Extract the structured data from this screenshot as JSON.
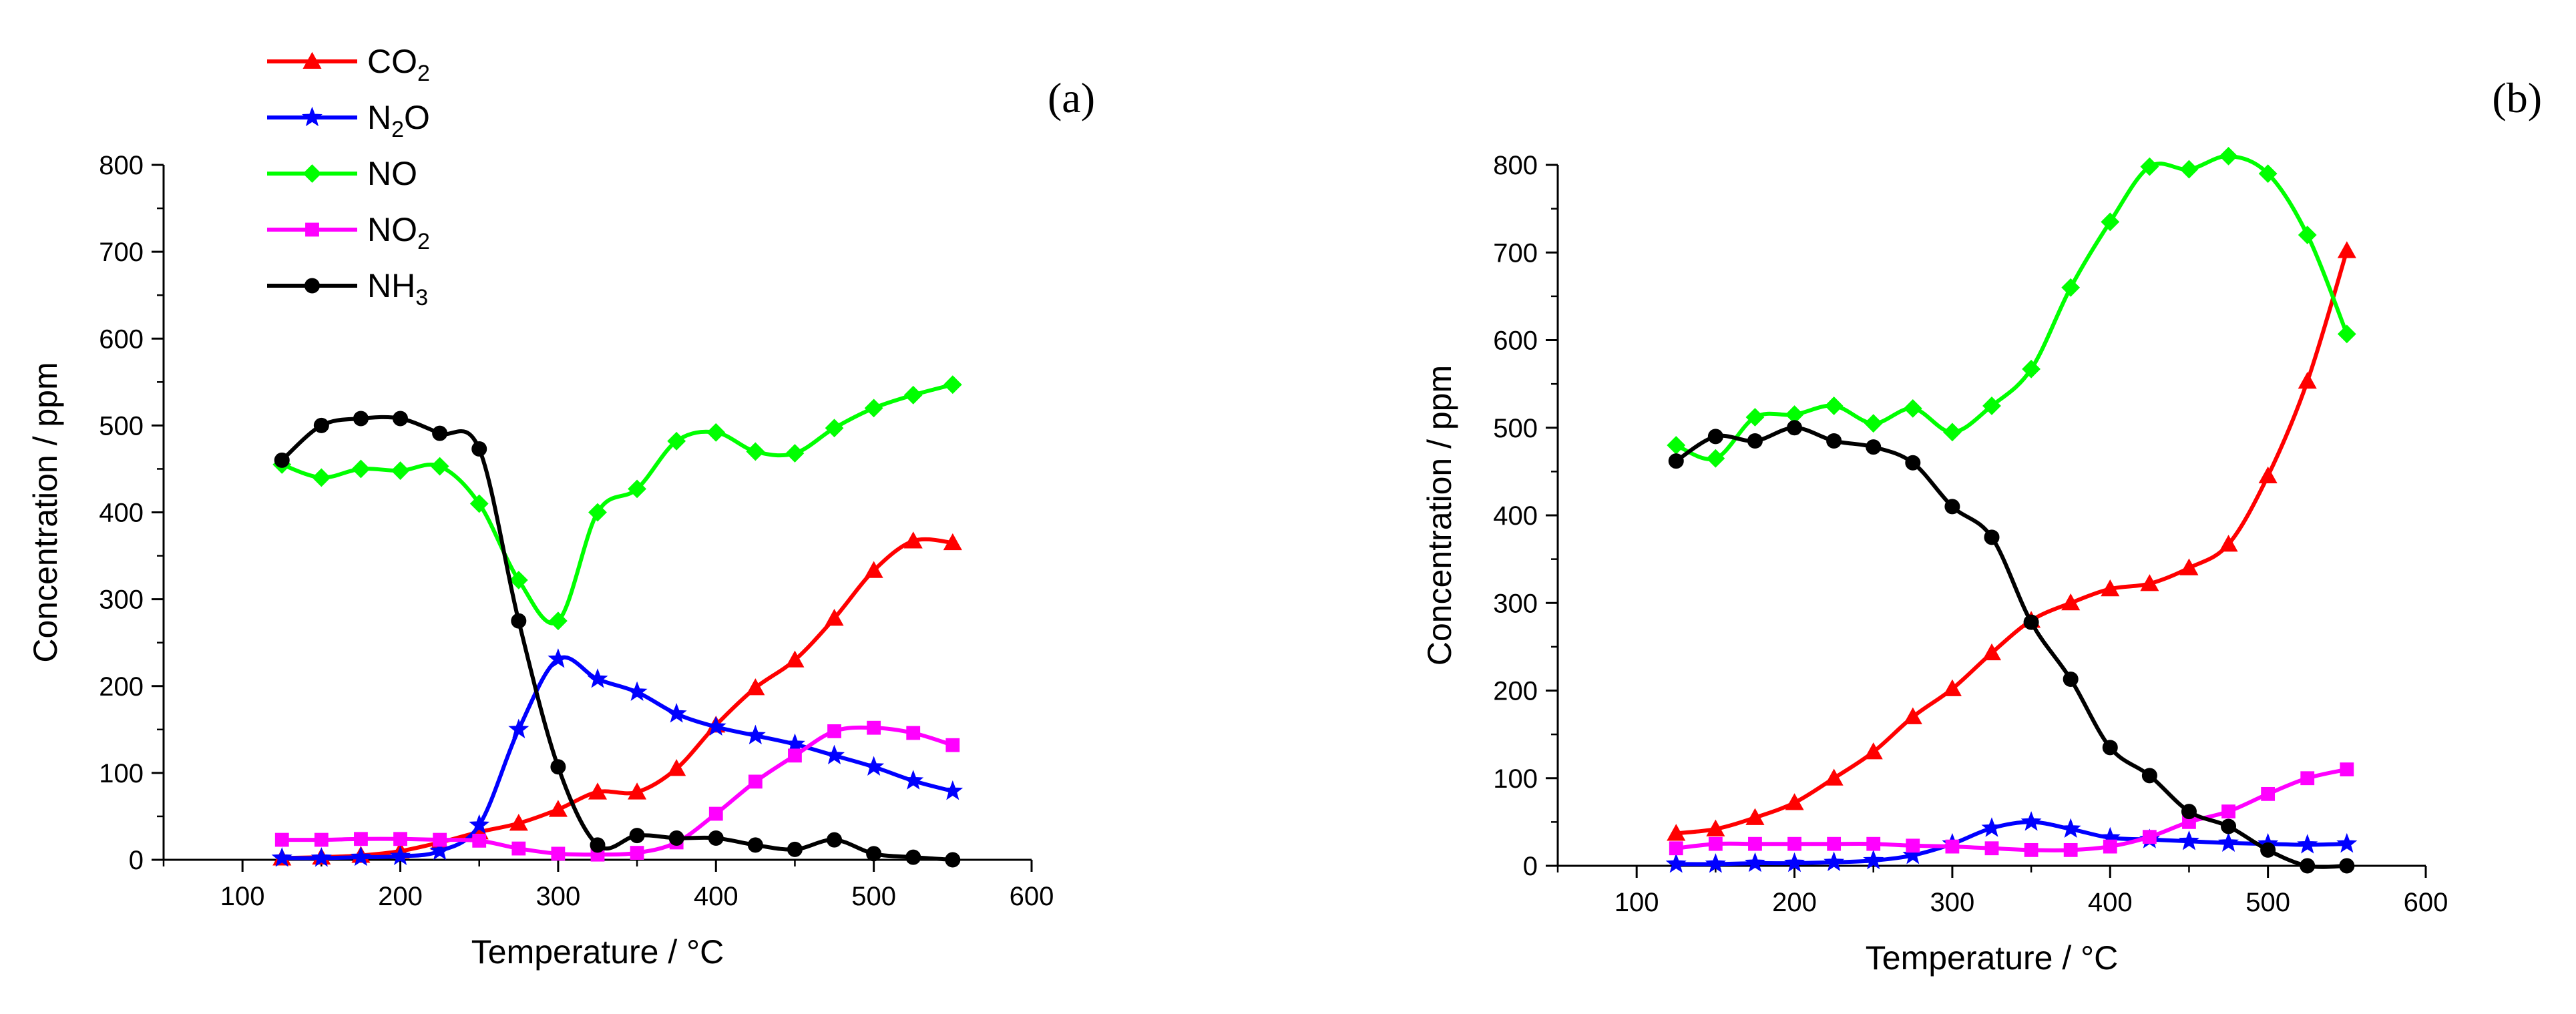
{
  "figure": {
    "legend": [
      {
        "series_index": 0,
        "base": "CO",
        "sub": "2",
        "rest": ""
      },
      {
        "series_index": 1,
        "base": "N",
        "sub": "2",
        "rest": "O"
      },
      {
        "series_index": 2,
        "base": "NO",
        "sub": "",
        "rest": ""
      },
      {
        "series_index": 3,
        "base": "NO",
        "sub": "2",
        "rest": ""
      },
      {
        "series_index": 4,
        "base": "NH",
        "sub": "3",
        "rest": ""
      }
    ]
  },
  "chart_data": [
    {
      "type": "line",
      "panel_label": "(a)",
      "xlabel": "Temperature / °C",
      "ylabel": "Concentration / ppm",
      "xlim": [
        50,
        600
      ],
      "ylim": [
        0,
        800
      ],
      "xticks": [
        100,
        200,
        300,
        400,
        500,
        600
      ],
      "yticks": [
        0,
        100,
        200,
        300,
        400,
        500,
        600,
        700,
        800
      ],
      "x": [
        125,
        150,
        175,
        200,
        225,
        250,
        275,
        300,
        325,
        350,
        375,
        400,
        425,
        450,
        475,
        500,
        525,
        550
      ],
      "series": [
        {
          "name": "CO2",
          "color": "#ff0000",
          "marker": "triangle",
          "values": [
            2,
            3,
            5,
            10,
            20,
            32,
            42,
            58,
            78,
            78,
            105,
            155,
            198,
            230,
            278,
            333,
            367,
            365
          ]
        },
        {
          "name": "N2O",
          "color": "#0000ff",
          "marker": "star",
          "values": [
            2,
            2,
            3,
            4,
            10,
            40,
            150,
            231,
            208,
            193,
            168,
            153,
            143,
            133,
            120,
            107,
            91,
            79
          ]
        },
        {
          "name": "NO",
          "color": "#00ff00",
          "marker": "diamond",
          "values": [
            455,
            440,
            450,
            448,
            453,
            410,
            322,
            275,
            400,
            427,
            482,
            492,
            470,
            468,
            497,
            520,
            535,
            547
          ]
        },
        {
          "name": "NO2",
          "color": "#ff00ff",
          "marker": "square",
          "values": [
            23,
            23,
            24,
            24,
            23,
            22,
            13,
            7,
            6,
            8,
            20,
            53,
            90,
            120,
            148,
            152,
            146,
            132
          ]
        },
        {
          "name": "NH3",
          "color": "#000000",
          "marker": "circle",
          "values": [
            460,
            500,
            508,
            508,
            491,
            473,
            275,
            107,
            17,
            28,
            25,
            25,
            17,
            12,
            23,
            7,
            3,
            0
          ]
        }
      ]
    },
    {
      "type": "line",
      "panel_label": "(b)",
      "xlabel": "Temperature / °C",
      "ylabel": "Concentration / ppm",
      "xlim": [
        50,
        600
      ],
      "ylim": [
        0,
        800
      ],
      "xticks": [
        100,
        200,
        300,
        400,
        500,
        600
      ],
      "yticks": [
        0,
        100,
        200,
        300,
        400,
        500,
        600,
        700,
        800
      ],
      "x": [
        125,
        150,
        175,
        200,
        225,
        250,
        275,
        300,
        325,
        350,
        375,
        400,
        425,
        450,
        475,
        500,
        525,
        550
      ],
      "series": [
        {
          "name": "CO2",
          "color": "#ff0000",
          "marker": "triangle",
          "values": [
            37,
            42,
            55,
            72,
            100,
            130,
            170,
            202,
            243,
            280,
            300,
            316,
            322,
            340,
            367,
            445,
            553,
            702
          ]
        },
        {
          "name": "N2O",
          "color": "#0000ff",
          "marker": "star",
          "values": [
            2,
            2,
            3,
            3,
            4,
            6,
            12,
            25,
            43,
            50,
            42,
            32,
            30,
            28,
            26,
            25,
            24,
            25
          ]
        },
        {
          "name": "NO",
          "color": "#00ff00",
          "marker": "diamond",
          "values": [
            480,
            465,
            512,
            515,
            525,
            505,
            522,
            495,
            525,
            567,
            660,
            735,
            798,
            795,
            810,
            790,
            720,
            607
          ]
        },
        {
          "name": "NO2",
          "color": "#ff00ff",
          "marker": "square",
          "values": [
            20,
            25,
            25,
            25,
            25,
            25,
            23,
            22,
            20,
            18,
            18,
            22,
            33,
            50,
            62,
            82,
            100,
            110
          ]
        },
        {
          "name": "NH3",
          "color": "#000000",
          "marker": "circle",
          "values": [
            462,
            490,
            485,
            500,
            485,
            478,
            460,
            410,
            375,
            278,
            213,
            135,
            103,
            62,
            45,
            18,
            0,
            0
          ]
        }
      ]
    }
  ]
}
